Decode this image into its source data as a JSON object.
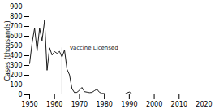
{
  "chart_data": {
    "type": "line",
    "ylabel": "Cases (thousands)",
    "x": [
      1950,
      1951,
      1952,
      1953,
      1954,
      1955,
      1956,
      1957,
      1958,
      1959,
      1960,
      1961,
      1962,
      1963,
      1964,
      1965,
      1966,
      1967,
      1968,
      1969,
      1970,
      1971,
      1972,
      1973,
      1974,
      1975,
      1976,
      1977,
      1978,
      1979,
      1980,
      1981,
      1982,
      1983,
      1984,
      1985,
      1986,
      1987,
      1988,
      1989,
      1990,
      1991,
      1992,
      1993,
      1994,
      1995,
      1996,
      1997,
      1998,
      1999,
      2000,
      2001,
      2002,
      2003,
      2004,
      2005,
      2006,
      2007,
      2008,
      2009,
      2010,
      2011
    ],
    "values": [
      319,
      530,
      683,
      449,
      683,
      555,
      763,
      251,
      481,
      406,
      442,
      424,
      444,
      385,
      458,
      262,
      204,
      62,
      22,
      25,
      47,
      75,
      32,
      27,
      22,
      24,
      41,
      57,
      26,
      14,
      13,
      3,
      1.7,
      1.5,
      2.6,
      2.8,
      6.3,
      3.7,
      3.4,
      18,
      28,
      9.6,
      2.2,
      0.3,
      0.96,
      0.31,
      0.5,
      0.14,
      0.1,
      0.1,
      0.09,
      0.12,
      0.044,
      0.056,
      0.037,
      0.066,
      0.055,
      0.043,
      0.064,
      0.071,
      0.063,
      0.22
    ],
    "color": "#1a1a1a",
    "xlim": [
      1950,
      2020
    ],
    "xticks": [
      1950,
      1960,
      1970,
      1980,
      1990,
      2000,
      2010,
      2020
    ],
    "ylim": [
      0,
      900
    ],
    "yticks": [
      0,
      100,
      200,
      300,
      400,
      500,
      600,
      700,
      800,
      900
    ],
    "grid": false,
    "annotations": [
      {
        "text": "Vaccine Licensed",
        "x": 1966,
        "y": 480,
        "line_x": 1963
      }
    ]
  }
}
